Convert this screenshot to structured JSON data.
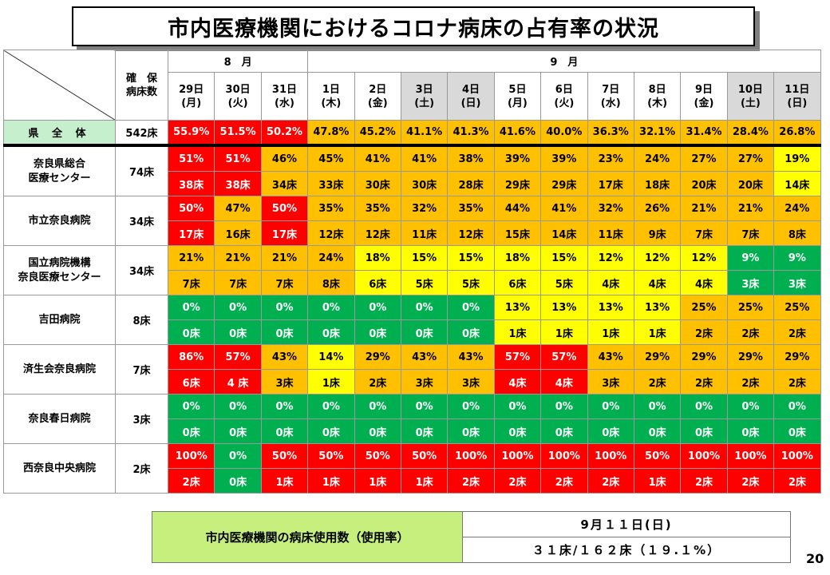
{
  "title": "市内医療機関におけるコロナ病床の占有率の状況",
  "header": {
    "secured_beds_label": "確　保\n病床数",
    "month_aug": "8　月",
    "month_sep": "9　月",
    "dates": [
      {
        "day": "29日",
        "dow": "(月)",
        "weekend": false
      },
      {
        "day": "30日",
        "dow": "(火)",
        "weekend": false
      },
      {
        "day": "31日",
        "dow": "(水)",
        "weekend": false
      },
      {
        "day": "1日",
        "dow": "(木)",
        "weekend": false
      },
      {
        "day": "2日",
        "dow": "(金)",
        "weekend": false
      },
      {
        "day": "3日",
        "dow": "(土)",
        "weekend": true
      },
      {
        "day": "4日",
        "dow": "(日)",
        "weekend": true
      },
      {
        "day": "5日",
        "dow": "(月)",
        "weekend": false
      },
      {
        "day": "6日",
        "dow": "(火)",
        "weekend": false
      },
      {
        "day": "7日",
        "dow": "(水)",
        "weekend": false
      },
      {
        "day": "8日",
        "dow": "(木)",
        "weekend": false
      },
      {
        "day": "9日",
        "dow": "(金)",
        "weekend": false
      },
      {
        "day": "10日",
        "dow": "(土)",
        "weekend": true
      },
      {
        "day": "11日",
        "dow": "(日)",
        "weekend": true
      }
    ]
  },
  "prefecture": {
    "name": "県 全 体",
    "beds": "542床",
    "values": [
      {
        "v": "55.9%",
        "c": "r"
      },
      {
        "v": "51.5%",
        "c": "r"
      },
      {
        "v": "50.2%",
        "c": "r"
      },
      {
        "v": "47.8%",
        "c": "o"
      },
      {
        "v": "45.2%",
        "c": "o"
      },
      {
        "v": "41.1%",
        "c": "o"
      },
      {
        "v": "41.3%",
        "c": "o"
      },
      {
        "v": "41.6%",
        "c": "o"
      },
      {
        "v": "40.0%",
        "c": "o"
      },
      {
        "v": "36.3%",
        "c": "o"
      },
      {
        "v": "32.1%",
        "c": "o"
      },
      {
        "v": "31.4%",
        "c": "o"
      },
      {
        "v": "28.4%",
        "c": "o"
      },
      {
        "v": "26.8%",
        "c": "o"
      }
    ]
  },
  "hospitals": [
    {
      "name": "奈良県総合\n医療センター",
      "beds": "74床",
      "pct": [
        {
          "v": "51%",
          "c": "r"
        },
        {
          "v": "51%",
          "c": "r"
        },
        {
          "v": "46%",
          "c": "o"
        },
        {
          "v": "45%",
          "c": "o"
        },
        {
          "v": "41%",
          "c": "o"
        },
        {
          "v": "41%",
          "c": "o"
        },
        {
          "v": "38%",
          "c": "o"
        },
        {
          "v": "39%",
          "c": "o"
        },
        {
          "v": "39%",
          "c": "o"
        },
        {
          "v": "23%",
          "c": "o"
        },
        {
          "v": "24%",
          "c": "o"
        },
        {
          "v": "27%",
          "c": "o"
        },
        {
          "v": "27%",
          "c": "o"
        },
        {
          "v": "19%",
          "c": "y"
        }
      ],
      "cnt": [
        {
          "v": "38床",
          "c": "r"
        },
        {
          "v": "38床",
          "c": "r"
        },
        {
          "v": "34床",
          "c": "o"
        },
        {
          "v": "33床",
          "c": "o"
        },
        {
          "v": "30床",
          "c": "o"
        },
        {
          "v": "30床",
          "c": "o"
        },
        {
          "v": "28床",
          "c": "o"
        },
        {
          "v": "29床",
          "c": "o"
        },
        {
          "v": "29床",
          "c": "o"
        },
        {
          "v": "17床",
          "c": "o"
        },
        {
          "v": "18床",
          "c": "o"
        },
        {
          "v": "20床",
          "c": "o"
        },
        {
          "v": "20床",
          "c": "o"
        },
        {
          "v": "14床",
          "c": "y"
        }
      ]
    },
    {
      "name": "市立奈良病院",
      "beds": "34床",
      "pct": [
        {
          "v": "50%",
          "c": "r"
        },
        {
          "v": "47%",
          "c": "o"
        },
        {
          "v": "50%",
          "c": "r"
        },
        {
          "v": "35%",
          "c": "o"
        },
        {
          "v": "35%",
          "c": "o"
        },
        {
          "v": "32%",
          "c": "o"
        },
        {
          "v": "35%",
          "c": "o"
        },
        {
          "v": "44%",
          "c": "o"
        },
        {
          "v": "41%",
          "c": "o"
        },
        {
          "v": "32%",
          "c": "o"
        },
        {
          "v": "26%",
          "c": "o"
        },
        {
          "v": "21%",
          "c": "o"
        },
        {
          "v": "21%",
          "c": "o"
        },
        {
          "v": "24%",
          "c": "o"
        }
      ],
      "cnt": [
        {
          "v": "17床",
          "c": "r"
        },
        {
          "v": "16床",
          "c": "o"
        },
        {
          "v": "17床",
          "c": "r"
        },
        {
          "v": "12床",
          "c": "o"
        },
        {
          "v": "12床",
          "c": "o"
        },
        {
          "v": "11床",
          "c": "o"
        },
        {
          "v": "12床",
          "c": "o"
        },
        {
          "v": "15床",
          "c": "o"
        },
        {
          "v": "14床",
          "c": "o"
        },
        {
          "v": "11床",
          "c": "o"
        },
        {
          "v": "9床",
          "c": "o"
        },
        {
          "v": "7床",
          "c": "o"
        },
        {
          "v": "7床",
          "c": "o"
        },
        {
          "v": "8床",
          "c": "o"
        }
      ]
    },
    {
      "name": "国立病院機構\n奈良医療センター",
      "beds": "34床",
      "pct": [
        {
          "v": "21%",
          "c": "o"
        },
        {
          "v": "21%",
          "c": "o"
        },
        {
          "v": "21%",
          "c": "o"
        },
        {
          "v": "24%",
          "c": "o"
        },
        {
          "v": "18%",
          "c": "y"
        },
        {
          "v": "15%",
          "c": "y"
        },
        {
          "v": "15%",
          "c": "y"
        },
        {
          "v": "18%",
          "c": "y"
        },
        {
          "v": "15%",
          "c": "y"
        },
        {
          "v": "12%",
          "c": "y"
        },
        {
          "v": "12%",
          "c": "y"
        },
        {
          "v": "12%",
          "c": "y"
        },
        {
          "v": "9%",
          "c": "g"
        },
        {
          "v": "9%",
          "c": "g"
        }
      ],
      "cnt": [
        {
          "v": "7床",
          "c": "o"
        },
        {
          "v": "7床",
          "c": "o"
        },
        {
          "v": "7床",
          "c": "o"
        },
        {
          "v": "8床",
          "c": "o"
        },
        {
          "v": "6床",
          "c": "y"
        },
        {
          "v": "5床",
          "c": "y"
        },
        {
          "v": "5床",
          "c": "y"
        },
        {
          "v": "6床",
          "c": "y"
        },
        {
          "v": "5床",
          "c": "y"
        },
        {
          "v": "4床",
          "c": "y"
        },
        {
          "v": "4床",
          "c": "y"
        },
        {
          "v": "4床",
          "c": "y"
        },
        {
          "v": "3床",
          "c": "g"
        },
        {
          "v": "3床",
          "c": "g"
        }
      ]
    },
    {
      "name": "吉田病院",
      "beds": "8床",
      "pct": [
        {
          "v": "0%",
          "c": "g"
        },
        {
          "v": "0%",
          "c": "g"
        },
        {
          "v": "0%",
          "c": "g"
        },
        {
          "v": "0%",
          "c": "g"
        },
        {
          "v": "0%",
          "c": "g"
        },
        {
          "v": "0%",
          "c": "g"
        },
        {
          "v": "0%",
          "c": "g"
        },
        {
          "v": "13%",
          "c": "y"
        },
        {
          "v": "13%",
          "c": "y"
        },
        {
          "v": "13%",
          "c": "y"
        },
        {
          "v": "13%",
          "c": "y"
        },
        {
          "v": "25%",
          "c": "o"
        },
        {
          "v": "25%",
          "c": "o"
        },
        {
          "v": "25%",
          "c": "o"
        }
      ],
      "cnt": [
        {
          "v": "0床",
          "c": "g"
        },
        {
          "v": "0床",
          "c": "g"
        },
        {
          "v": "0床",
          "c": "g"
        },
        {
          "v": "0床",
          "c": "g"
        },
        {
          "v": "0床",
          "c": "g"
        },
        {
          "v": "0床",
          "c": "g"
        },
        {
          "v": "0床",
          "c": "g"
        },
        {
          "v": "1床",
          "c": "y"
        },
        {
          "v": "1床",
          "c": "y"
        },
        {
          "v": "1床",
          "c": "y"
        },
        {
          "v": "1床",
          "c": "y"
        },
        {
          "v": "2床",
          "c": "o"
        },
        {
          "v": "2床",
          "c": "o"
        },
        {
          "v": "2床",
          "c": "o"
        }
      ]
    },
    {
      "name": "済生会奈良病院",
      "beds": "7床",
      "pct": [
        {
          "v": "86%",
          "c": "r"
        },
        {
          "v": "57%",
          "c": "r"
        },
        {
          "v": "43%",
          "c": "o"
        },
        {
          "v": "14%",
          "c": "y"
        },
        {
          "v": "29%",
          "c": "o"
        },
        {
          "v": "43%",
          "c": "o"
        },
        {
          "v": "43%",
          "c": "o"
        },
        {
          "v": "57%",
          "c": "r"
        },
        {
          "v": "57%",
          "c": "r"
        },
        {
          "v": "43%",
          "c": "o"
        },
        {
          "v": "29%",
          "c": "o"
        },
        {
          "v": "29%",
          "c": "o"
        },
        {
          "v": "29%",
          "c": "o"
        },
        {
          "v": "29%",
          "c": "o"
        }
      ],
      "cnt": [
        {
          "v": "6床",
          "c": "r"
        },
        {
          "v": "4 床",
          "c": "r"
        },
        {
          "v": "3床",
          "c": "o"
        },
        {
          "v": "1床",
          "c": "y"
        },
        {
          "v": "2床",
          "c": "o"
        },
        {
          "v": "3床",
          "c": "o"
        },
        {
          "v": "3床",
          "c": "o"
        },
        {
          "v": "4床",
          "c": "r"
        },
        {
          "v": "4床",
          "c": "r"
        },
        {
          "v": "3床",
          "c": "o"
        },
        {
          "v": "2床",
          "c": "o"
        },
        {
          "v": "2床",
          "c": "o"
        },
        {
          "v": "2床",
          "c": "o"
        },
        {
          "v": "2床",
          "c": "o"
        }
      ]
    },
    {
      "name": "奈良春日病院",
      "beds": "3床",
      "pct": [
        {
          "v": "0%",
          "c": "g"
        },
        {
          "v": "0%",
          "c": "g"
        },
        {
          "v": "0%",
          "c": "g"
        },
        {
          "v": "0%",
          "c": "g"
        },
        {
          "v": "0%",
          "c": "g"
        },
        {
          "v": "0%",
          "c": "g"
        },
        {
          "v": "0%",
          "c": "g"
        },
        {
          "v": "0%",
          "c": "g"
        },
        {
          "v": "0%",
          "c": "g"
        },
        {
          "v": "0%",
          "c": "g"
        },
        {
          "v": "0%",
          "c": "g"
        },
        {
          "v": "0%",
          "c": "g"
        },
        {
          "v": "0%",
          "c": "g"
        },
        {
          "v": "0%",
          "c": "g"
        }
      ],
      "cnt": [
        {
          "v": "0床",
          "c": "g"
        },
        {
          "v": "0床",
          "c": "g"
        },
        {
          "v": "0床",
          "c": "g"
        },
        {
          "v": "0床",
          "c": "g"
        },
        {
          "v": "0床",
          "c": "g"
        },
        {
          "v": "0床",
          "c": "g"
        },
        {
          "v": "0床",
          "c": "g"
        },
        {
          "v": "0床",
          "c": "g"
        },
        {
          "v": "0床",
          "c": "g"
        },
        {
          "v": "0床",
          "c": "g"
        },
        {
          "v": "0床",
          "c": "g"
        },
        {
          "v": "0床",
          "c": "g"
        },
        {
          "v": "0床",
          "c": "g"
        },
        {
          "v": "0床",
          "c": "g"
        }
      ]
    },
    {
      "name": "西奈良中央病院",
      "beds": "2床",
      "pct": [
        {
          "v": "100%",
          "c": "r"
        },
        {
          "v": "0%",
          "c": "g"
        },
        {
          "v": "50%",
          "c": "r"
        },
        {
          "v": "50%",
          "c": "r"
        },
        {
          "v": "50%",
          "c": "r"
        },
        {
          "v": "50%",
          "c": "r"
        },
        {
          "v": "100%",
          "c": "r"
        },
        {
          "v": "100%",
          "c": "r"
        },
        {
          "v": "100%",
          "c": "r"
        },
        {
          "v": "100%",
          "c": "r"
        },
        {
          "v": "50%",
          "c": "r"
        },
        {
          "v": "100%",
          "c": "r"
        },
        {
          "v": "100%",
          "c": "r"
        },
        {
          "v": "100%",
          "c": "r"
        }
      ],
      "cnt": [
        {
          "v": "2床",
          "c": "r"
        },
        {
          "v": "0床",
          "c": "g"
        },
        {
          "v": "1床",
          "c": "r"
        },
        {
          "v": "1床",
          "c": "r"
        },
        {
          "v": "1床",
          "c": "r"
        },
        {
          "v": "1床",
          "c": "r"
        },
        {
          "v": "2床",
          "c": "r"
        },
        {
          "v": "2床",
          "c": "r"
        },
        {
          "v": "2床",
          "c": "r"
        },
        {
          "v": "2床",
          "c": "r"
        },
        {
          "v": "1床",
          "c": "r"
        },
        {
          "v": "2床",
          "c": "r"
        },
        {
          "v": "2床",
          "c": "r"
        },
        {
          "v": "2床",
          "c": "r"
        }
      ]
    }
  ],
  "summary": {
    "label": "市内医療機関の病床使用数（使用率）",
    "date": "9月１１日(日)",
    "value": "３１床/１６２床（１９.１%）"
  },
  "page_number": "20",
  "colors": {
    "red": "#ff0000",
    "orange": "#ffc000",
    "yellow": "#ffff00",
    "green": "#00b050",
    "pref_bg": "#c6efce",
    "summary_bg": "#c6ef7e"
  }
}
